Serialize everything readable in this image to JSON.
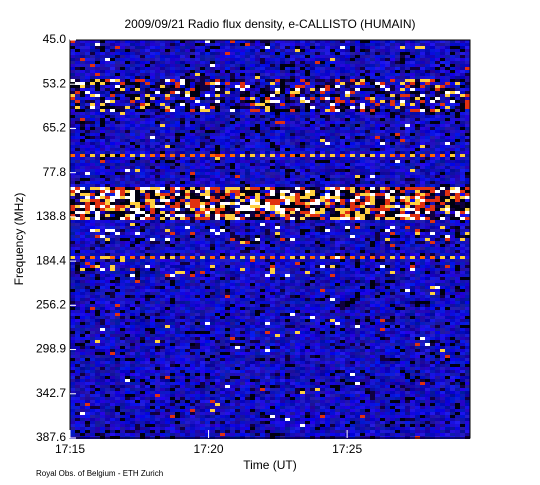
{
  "chart_data": {
    "type": "spectrogram",
    "title": "2009/09/21  Radio flux density, e-CALLISTO (HUMAIN)",
    "x_label": "Time (UT)",
    "y_label": "Frequency (MHz)",
    "footer": "Royal Obs. of Belgium - ETH Zurich",
    "xlim": [
      "17:15:00",
      "17:29:26"
    ],
    "xticks": [
      "17:15",
      "17:20",
      "17:25"
    ],
    "y_categories": [
      "45.0",
      "53.2",
      "65.2",
      "77.8",
      "138.8",
      "184.4",
      "256.2",
      "298.9",
      "342.7",
      "387.6"
    ]
  }
}
